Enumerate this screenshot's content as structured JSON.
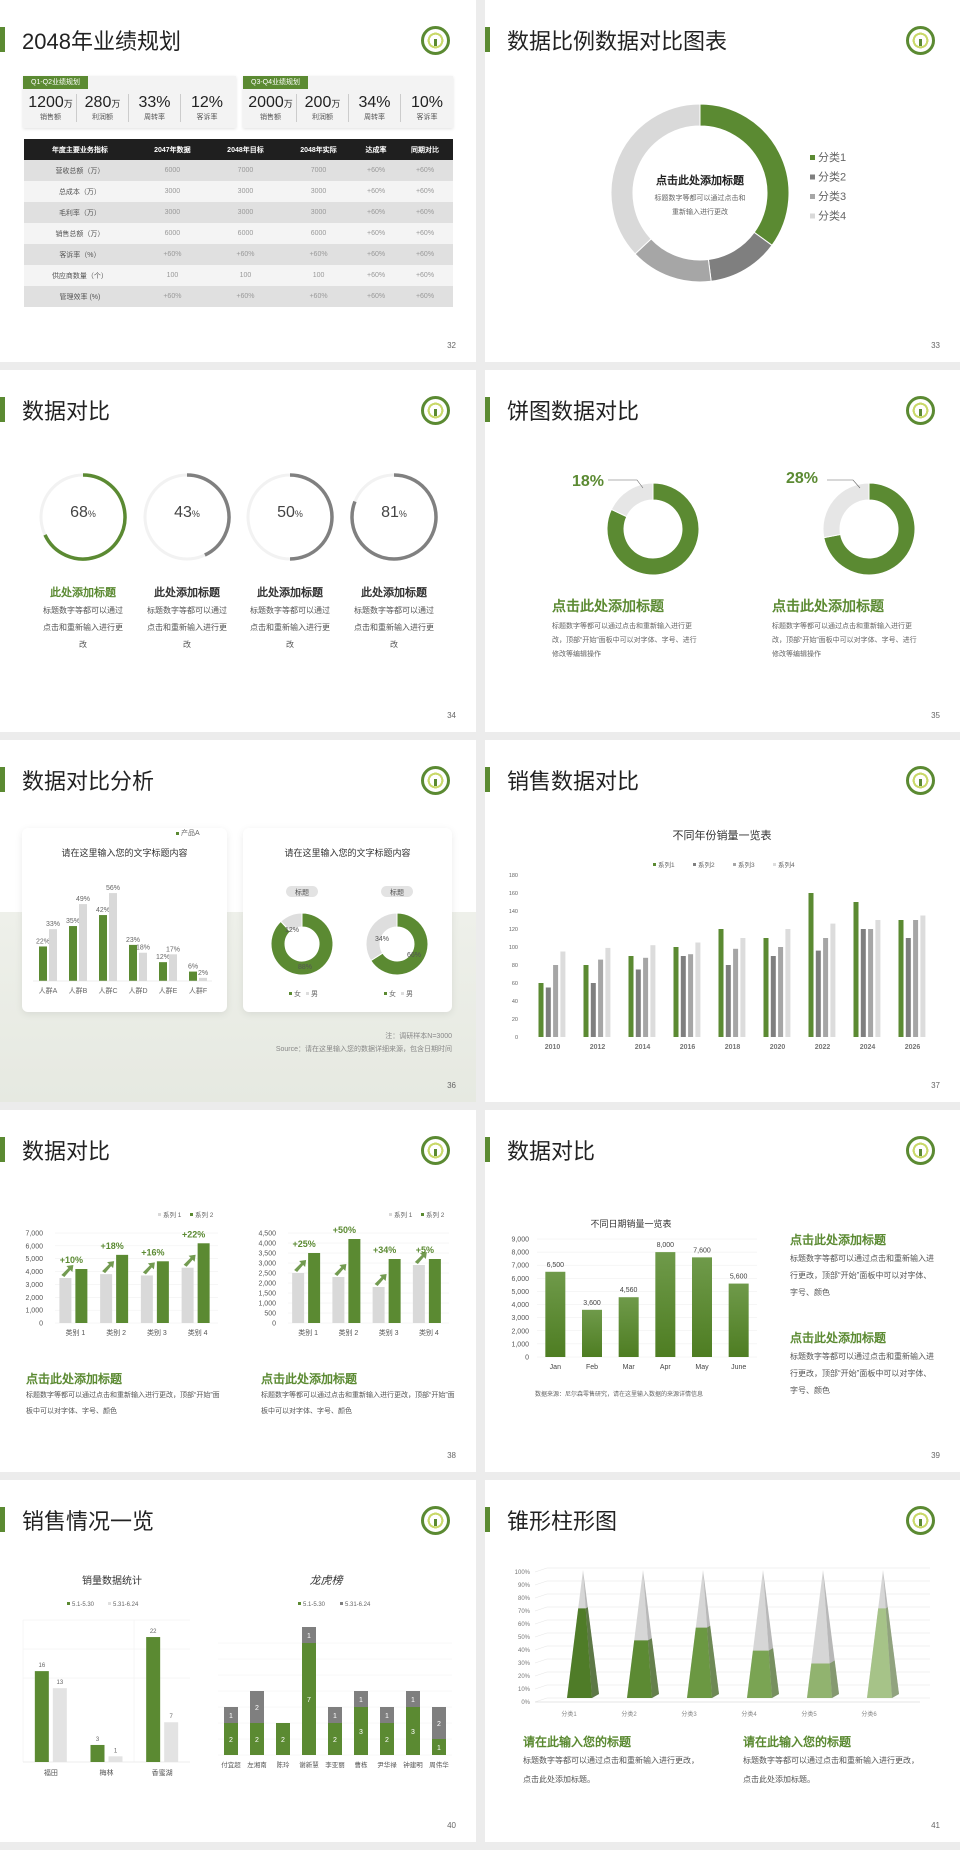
{
  "colors": {
    "green": "#5b8a32",
    "dark_gray": "#7f7f7f",
    "mid_gray": "#a6a6a6",
    "light_gray": "#d9d9d9"
  },
  "logo_icon": "tree-seal-logo",
  "s32": {
    "title": "2048年业绩规划",
    "page": "32",
    "q1": {
      "tag": "Q1-Q2业绩规划",
      "stats": [
        {
          "v": "1200",
          "u": "万",
          "l": "销售额"
        },
        {
          "v": "280",
          "u": "万",
          "l": "利润额"
        },
        {
          "v": "33%",
          "u": "",
          "l": "周转率"
        },
        {
          "v": "12%",
          "u": "",
          "l": "客诉率"
        }
      ]
    },
    "q3": {
      "tag": "Q3-Q4业绩规划",
      "stats": [
        {
          "v": "2000",
          "u": "万",
          "l": "销售额"
        },
        {
          "v": "200",
          "u": "万",
          "l": "利润额"
        },
        {
          "v": "34%",
          "u": "",
          "l": "周转率"
        },
        {
          "v": "10%",
          "u": "",
          "l": "客诉率"
        }
      ]
    },
    "table": {
      "headers": [
        "年度主要业务指标",
        "2047年数据",
        "2048年目标",
        "2048年实际",
        "达成率",
        "同期对比"
      ],
      "rows": [
        [
          "营收总额（万）",
          "6000",
          "7000",
          "7000",
          "+60%",
          "+60%"
        ],
        [
          "总成本（万）",
          "3000",
          "3000",
          "3000",
          "+60%",
          "+60%"
        ],
        [
          "毛利率（万）",
          "3000",
          "3000",
          "3000",
          "+60%",
          "+60%"
        ],
        [
          "销售总额（万）",
          "6000",
          "6000",
          "6000",
          "+60%",
          "+60%"
        ],
        [
          "客诉率（%）",
          "+60%",
          "+60%",
          "+60%",
          "+60%",
          "+60%"
        ],
        [
          "供应商数量（个）",
          "100",
          "100",
          "100",
          "+60%",
          "+60%"
        ],
        [
          "管理效率 (%)",
          "+60%",
          "+60%",
          "+60%",
          "+60%",
          "+60%"
        ]
      ]
    }
  },
  "s33": {
    "title": "数据比例数据对比图表",
    "page": "33",
    "center_title": "点击此处添加标题",
    "center_text1": "标题数字等都可以通过点击和",
    "center_text2": "重新输入进行更改"
  },
  "s34": {
    "title": "数据对比",
    "page": "34",
    "items": [
      {
        "value": "68",
        "unit": "%",
        "title": "此处添加标题",
        "text": "标题数字等都可以通过点击和重新输入进行更改"
      },
      {
        "value": "43",
        "unit": "%",
        "title": "此处添加标题",
        "text": "标题数字等都可以通过点击和重新输入进行更改"
      },
      {
        "value": "50",
        "unit": "%",
        "title": "此处添加标题",
        "text": "标题数字等都可以通过点击和重新输入进行更改"
      },
      {
        "value": "81",
        "unit": "%",
        "title": "此处添加标题",
        "text": "标题数字等都可以通过点击和重新输入进行更改"
      }
    ]
  },
  "s35": {
    "title": "饼图数据对比",
    "page": "35",
    "items": [
      {
        "label": "18%",
        "title": "点击此处添加标题",
        "text": "标题数字等都可以通过点击和重新输入进行更改，顶部“开始”面板中可以对字体、字号、进行修改等编辑操作"
      },
      {
        "label": "28%",
        "title": "点击此处添加标题",
        "text": "标题数字等都可以通过点击和重新输入进行更改，顶部“开始”面板中可以对字体、字号、进行修改等编辑操作"
      }
    ]
  },
  "s36": {
    "title": "数据对比分析",
    "page": "36",
    "card1_title": "请在这里输入您的文字标题内容",
    "card2_title": "请在这里输入您的文字标题内容",
    "note": "注：调研样本N=3000",
    "source": "Source：请在这里输入您的数据详细来源，包含日期时间"
  },
  "s37": {
    "title": "销售数据对比",
    "page": "37"
  },
  "s38": {
    "title": "数据对比",
    "page": "38",
    "left_title": "点击此处添加标题",
    "left_text": "标题数字等都可以通过点击和重新输入进行更改，顶部“开始”面板中可以对字体、字号、颜色",
    "right_title": "点击此处添加标题",
    "right_text": "标题数字等都可以通过点击和重新输入进行更改，顶部“开始”面板中可以对字体、字号、颜色"
  },
  "s39": {
    "title": "数据对比",
    "page": "39",
    "source": "数据来源：尼尔森零售研究，请在这里输入数据的来源详情信息",
    "blocks": [
      {
        "title": "点击此处添加标题",
        "text": "标题数字等都可以通过点击和重新输入进行更改，顶部“开始”面板中可以对字体、字号、颜色"
      },
      {
        "title": "点击此处添加标题",
        "text": "标题数字等都可以通过点击和重新输入进行更改，顶部“开始”面板中可以对字体、字号、颜色"
      }
    ]
  },
  "s40": {
    "title": "销售情况一览",
    "page": "40"
  },
  "s41": {
    "title": "锥形柱形图",
    "page": "41",
    "blocks": [
      {
        "title": "请在此输入您的标题",
        "text": "标题数字等都可以通过点击和重新输入进行更改，点击此处添加标题。"
      },
      {
        "title": "请在此输入您的标题",
        "text": "标题数字等都可以通过点击和重新输入进行更改，点击此处添加标题。"
      }
    ]
  },
  "chart_data": [
    {
      "id": "s33",
      "type": "pie",
      "donut": true,
      "categories": [
        "分类1",
        "分类2",
        "分类3",
        "分类4"
      ],
      "values": [
        35,
        13,
        15,
        37
      ],
      "legend": "right"
    },
    {
      "id": "s34",
      "type": "pie",
      "donut": true,
      "values": [
        68,
        43,
        50,
        81
      ]
    },
    {
      "id": "s35",
      "type": "pie",
      "donut": true,
      "charts": [
        {
          "values": [
            82,
            18
          ]
        },
        {
          "values": [
            72,
            28
          ]
        }
      ]
    },
    {
      "id": "s36a",
      "type": "bar",
      "categories": [
        "人群A",
        "人群B",
        "人群C",
        "人群D",
        "人群E",
        "人群F"
      ],
      "series": [
        {
          "name": "产品A",
          "values": [
            22,
            35,
            42,
            23,
            12,
            6
          ]
        },
        {
          "values": [
            33,
            49,
            56,
            18,
            17,
            2
          ]
        }
      ],
      "legend": "top-right"
    },
    {
      "id": "s36b",
      "type": "pie",
      "donut": true,
      "charts": [
        {
          "label": "标题",
          "values": [
            88,
            12
          ]
        },
        {
          "label": "标题",
          "values": [
            66,
            34
          ]
        }
      ],
      "legend_entries": [
        "女",
        "男"
      ]
    },
    {
      "id": "s37",
      "type": "bar",
      "title": "不同年份销量一览表",
      "categories": [
        "2010",
        "2012",
        "2014",
        "2016",
        "2018",
        "2020",
        "2022",
        "2024",
        "2026"
      ],
      "ylim": [
        0,
        180
      ],
      "yticks": [
        0,
        20,
        40,
        60,
        80,
        100,
        120,
        140,
        160,
        180
      ],
      "legend": "top",
      "series": [
        {
          "name": "系列1",
          "values": [
            60,
            80,
            90,
            100,
            120,
            110,
            160,
            150,
            130
          ]
        },
        {
          "name": "系列2",
          "values": [
            55,
            60,
            75,
            90,
            80,
            90,
            96,
            120,
            110
          ]
        },
        {
          "name": "系列3",
          "values": [
            80,
            86,
            88,
            92,
            98,
            100,
            110,
            120,
            130
          ]
        },
        {
          "name": "系列4",
          "values": [
            95,
            99,
            102,
            105,
            110,
            120,
            126,
            130,
            135
          ]
        }
      ]
    },
    {
      "id": "s38a",
      "type": "bar",
      "categories": [
        "类别 1",
        "类别 2",
        "类别 3",
        "类别 4"
      ],
      "ylim": [
        0,
        7000
      ],
      "yticks": [
        0,
        1000,
        2000,
        3000,
        4000,
        5000,
        6000,
        7000
      ],
      "legend": "top-right",
      "series": [
        {
          "name": "系列 1",
          "values": [
            3500,
            3800,
            3700,
            4300
          ]
        },
        {
          "name": "系列 2",
          "values": [
            4200,
            5300,
            4800,
            6200
          ]
        }
      ],
      "annotations": [
        "+10%",
        "+18%",
        "+16%",
        "+22%"
      ]
    },
    {
      "id": "s38b",
      "type": "bar",
      "categories": [
        "类别 1",
        "类别 2",
        "类别 3",
        "类别 4"
      ],
      "ylim": [
        0,
        4500
      ],
      "yticks": [
        0,
        500,
        1000,
        1500,
        2000,
        2500,
        3000,
        3500,
        4000,
        4500
      ],
      "legend": "top-right",
      "series": [
        {
          "name": "系列 1",
          "values": [
            2500,
            2300,
            1800,
            2900
          ]
        },
        {
          "name": "系列 2",
          "values": [
            3500,
            4200,
            3200,
            3200
          ]
        }
      ],
      "annotations": [
        "+25%",
        "+50%",
        "+34%",
        "+5%"
      ]
    },
    {
      "id": "s39",
      "type": "bar",
      "title": "不同日期销量一览表",
      "categories": [
        "Jan",
        "Feb",
        "Mar",
        "Apr",
        "May",
        "June"
      ],
      "values": [
        6500,
        3600,
        4560,
        8000,
        7600,
        5600
      ],
      "data_labels": [
        "6,500",
        "3,600",
        "4,560",
        "8,000",
        "7,600",
        "5,600"
      ],
      "ylim": [
        0,
        9000
      ],
      "yticks": [
        0,
        1000,
        2000,
        3000,
        4000,
        5000,
        6000,
        7000,
        8000,
        9000
      ]
    },
    {
      "id": "s40a",
      "type": "bar",
      "title": "销量数据统计",
      "categories": [
        "福田",
        "梅林",
        "香蜜湖"
      ],
      "legend": "top",
      "series": [
        {
          "name": "5.1-5.30",
          "values": [
            16,
            3,
            22
          ]
        },
        {
          "name": "5.31-6.24",
          "values": [
            13,
            1,
            7
          ]
        }
      ]
    },
    {
      "id": "s40b",
      "type": "bar",
      "stacked": true,
      "title": "龙虎榜",
      "categories": [
        "付宜超",
        "左湘南",
        "陈玲",
        "谢新慧",
        "李亚丽",
        "曹栋",
        "尹华禄",
        "钟建明",
        "周伟华"
      ],
      "legend": "top",
      "series": [
        {
          "name": "5.1-5.30",
          "values": [
            2,
            2,
            2,
            7,
            2,
            3,
            2,
            3,
            1
          ]
        },
        {
          "name": "5.31-6.24",
          "values": [
            1,
            2,
            0,
            1,
            1,
            1,
            1,
            1,
            2
          ]
        }
      ]
    },
    {
      "id": "s41",
      "type": "bar",
      "shape": "cone",
      "categories": [
        "分类1",
        "分类2",
        "分类3",
        "分类4",
        "分类5",
        "分类6"
      ],
      "values": [
        70,
        45,
        55,
        37,
        27,
        70
      ],
      "ylim": [
        0,
        100
      ],
      "yticks": [
        "0%",
        "10%",
        "20%",
        "30%",
        "40%",
        "50%",
        "60%",
        "70%",
        "80%",
        "90%",
        "100%"
      ]
    }
  ]
}
